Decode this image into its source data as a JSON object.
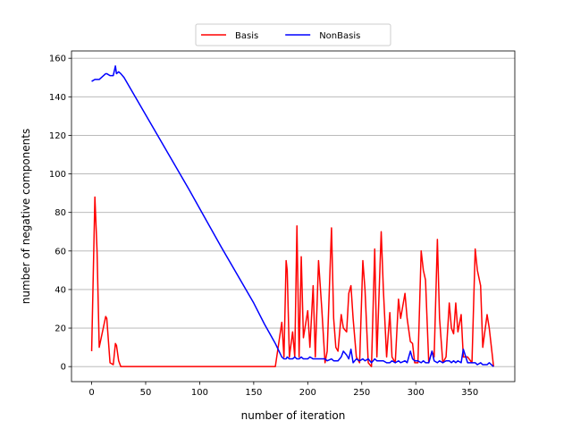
{
  "chart_data": {
    "type": "line",
    "xlabel": "number of iteration",
    "ylabel": "number of negative components",
    "x": [
      0,
      3,
      5,
      7,
      13,
      14,
      17,
      20,
      22,
      23,
      25,
      27,
      30,
      60,
      90,
      120,
      150,
      160,
      170,
      176,
      178,
      180,
      181,
      183,
      186,
      188,
      190,
      192,
      194,
      196,
      200,
      202,
      205,
      207,
      210,
      213,
      216,
      218,
      222,
      224,
      226,
      228,
      231,
      233,
      236,
      238,
      240,
      242,
      245,
      248,
      251,
      253,
      256,
      259,
      262,
      264,
      268,
      270,
      273,
      276,
      278,
      281,
      284,
      286,
      290,
      292,
      295,
      297,
      299,
      302,
      305,
      307,
      309,
      312,
      315,
      317,
      320,
      322,
      325,
      328,
      331,
      333,
      335,
      337,
      339,
      342,
      344,
      348,
      352,
      355,
      357,
      360,
      362,
      366,
      368,
      370,
      372
    ],
    "series": [
      {
        "name": "Basis",
        "color": "#ff0000",
        "values": [
          8,
          88,
          60,
          10,
          26,
          25,
          2,
          1,
          12,
          11,
          3,
          0,
          0,
          0,
          0,
          0,
          0,
          0,
          0,
          23,
          5,
          55,
          50,
          5,
          18,
          5,
          73,
          5,
          57,
          15,
          29,
          10,
          42,
          5,
          55,
          30,
          2,
          8,
          72,
          25,
          10,
          8,
          27,
          20,
          18,
          38,
          42,
          25,
          5,
          2,
          55,
          40,
          2,
          0,
          61,
          5,
          70,
          40,
          5,
          28,
          5,
          2,
          35,
          25,
          38,
          25,
          13,
          12,
          2,
          2,
          60,
          50,
          45,
          2,
          8,
          5,
          66,
          25,
          2,
          5,
          33,
          20,
          17,
          33,
          18,
          27,
          5,
          5,
          2,
          61,
          50,
          42,
          10,
          27,
          20,
          10,
          0
        ]
      },
      {
        "name": "NonBasis",
        "color": "#0000ff",
        "values": [
          148,
          149,
          149,
          149,
          152,
          152,
          151,
          151,
          156,
          152,
          153,
          152,
          150,
          121,
          92,
          62,
          33,
          22,
          12,
          5,
          4,
          4,
          5,
          4,
          4,
          5,
          4,
          4,
          5,
          4,
          4,
          5,
          4,
          4,
          4,
          4,
          4,
          3,
          4,
          3,
          3,
          3,
          5,
          8,
          6,
          4,
          9,
          2,
          4,
          3,
          4,
          3,
          4,
          2,
          4,
          3,
          3,
          3,
          2,
          2,
          3,
          2,
          3,
          2,
          3,
          2,
          8,
          4,
          3,
          3,
          2,
          3,
          2,
          2,
          8,
          3,
          2,
          3,
          2,
          3,
          3,
          2,
          3,
          2,
          3,
          2,
          9,
          2,
          2,
          2,
          1,
          2,
          1,
          1,
          2,
          1,
          0
        ]
      }
    ],
    "xlim": [
      -18.65,
      391.65
    ],
    "ylim": [
      -7.8,
      163.8
    ],
    "xticks": [
      0,
      50,
      100,
      150,
      200,
      250,
      300,
      350
    ],
    "yticks": [
      0,
      20,
      40,
      60,
      80,
      100,
      120,
      140,
      160
    ],
    "grid": "y",
    "legend": "upper center"
  }
}
